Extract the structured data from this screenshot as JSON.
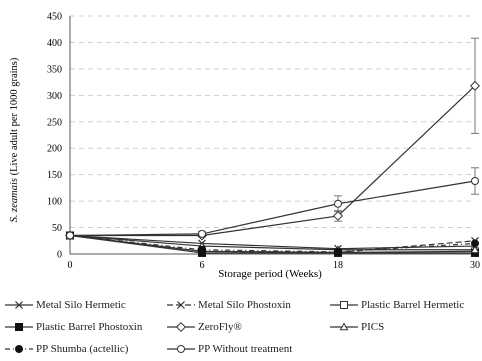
{
  "chart_data": {
    "type": "line",
    "title": "",
    "xlabel": "Storage period (Weeks)",
    "ylabel_italic": "S. zeamais",
    "ylabel_rest": " (Live adult per 1000 grains)",
    "x_categories": [
      "0",
      "6",
      "18",
      "30"
    ],
    "y_ticks": [
      "0",
      "50",
      "100",
      "150",
      "200",
      "250",
      "300",
      "350",
      "400",
      "450"
    ],
    "ylim": [
      0,
      450
    ],
    "grid": "horizontal dashed",
    "legend_position": "bottom",
    "series": [
      {
        "name": "Metal Silo Hermetic",
        "marker": "x",
        "dash": "solid",
        "values": [
          35,
          20,
          10,
          15
        ]
      },
      {
        "name": "Metal Silo Phostoxin",
        "marker": "x",
        "dash": "dashed",
        "values": [
          35,
          5,
          3,
          25
        ]
      },
      {
        "name": "Plastic Barrel Hermetic",
        "marker": "square-open",
        "dash": "solid",
        "values": [
          35,
          5,
          3,
          5
        ]
      },
      {
        "name": "Plastic Barrel Phostoxin",
        "marker": "square-filled",
        "dash": "solid",
        "values": [
          35,
          2,
          2,
          2
        ]
      },
      {
        "name": "ZeroFly®",
        "marker": "diamond-open",
        "dash": "solid",
        "values": [
          35,
          35,
          72,
          318
        ],
        "error": [
          0,
          0,
          10,
          90
        ]
      },
      {
        "name": "PICS",
        "marker": "triangle-open",
        "dash": "solid",
        "values": [
          35,
          15,
          8,
          8
        ]
      },
      {
        "name": "PP Shumba (actellic)",
        "marker": "circle-filled",
        "dash": "dashdot",
        "values": [
          35,
          8,
          4,
          20
        ]
      },
      {
        "name": "PP Without treatment",
        "marker": "circle-open",
        "dash": "solid",
        "values": [
          35,
          38,
          95,
          138
        ],
        "error": [
          0,
          5,
          15,
          25
        ]
      }
    ]
  }
}
